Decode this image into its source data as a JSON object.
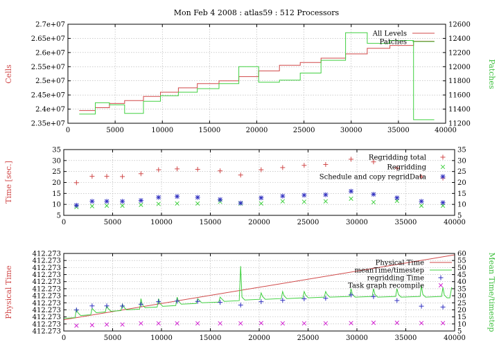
{
  "title": "Mon Feb 4 2008 : atlas59 : 512 Processors",
  "colors": {
    "red": "#d04848",
    "green": "#40d040",
    "blue": "#3030c0",
    "magenta": "#d020d0"
  },
  "chart_data": [
    {
      "type": "line",
      "ylabel": "Cells",
      "y2label": "Patches",
      "xlim": [
        0,
        40000
      ],
      "ylim": [
        23500000,
        27000000
      ],
      "y2lim": [
        11200,
        12600
      ],
      "xticks": [
        "0",
        "5000",
        "10000",
        "15000",
        "20000",
        "25000",
        "30000",
        "35000",
        "40000"
      ],
      "yticks": [
        "2.35e+07",
        "2.4e+07",
        "2.45e+07",
        "2.5e+07",
        "2.55e+07",
        "2.6e+07",
        "2.65e+07",
        "2.7e+07"
      ],
      "y2ticks": [
        "11200",
        "11400",
        "11600",
        "11800",
        "12000",
        "12200",
        "12400",
        "12600"
      ],
      "grid": true,
      "legend_position": "top-right",
      "series": [
        {
          "name": "All Levels",
          "axis": "y",
          "step": true,
          "x": [
            1200,
            2900,
            4400,
            6000,
            8000,
            9800,
            11700,
            13700,
            16000,
            18100,
            20200,
            22400,
            24600,
            26800,
            29400,
            31700,
            34100,
            36600,
            38800
          ],
          "y": [
            23950000,
            24050000,
            24200000,
            24300000,
            24450000,
            24600000,
            24750000,
            24900000,
            25000000,
            25150000,
            25350000,
            25550000,
            25650000,
            25800000,
            25950000,
            26150000,
            26250000,
            26400000,
            26400000
          ]
        },
        {
          "name": "Patches",
          "axis": "y2",
          "step": true,
          "x": [
            1200,
            2900,
            4400,
            6000,
            8000,
            9800,
            11700,
            13700,
            16000,
            18100,
            20200,
            22400,
            24600,
            26800,
            29400,
            31700,
            34100,
            36600,
            38800
          ],
          "y": [
            11330,
            11490,
            11460,
            11340,
            11510,
            11590,
            11640,
            11690,
            11760,
            12000,
            11780,
            11810,
            11910,
            12090,
            12480,
            12330,
            12370,
            11250,
            11250
          ]
        }
      ]
    },
    {
      "type": "scatter",
      "ylabel": "Time [sec.]",
      "xlim": [
        0,
        40000
      ],
      "ylim": [
        5,
        35
      ],
      "xticks": [
        "0",
        "5000",
        "10000",
        "15000",
        "20000",
        "25000",
        "30000",
        "35000",
        "40000"
      ],
      "yticks": [
        "5",
        "10",
        "15",
        "20",
        "25",
        "30",
        "35"
      ],
      "y2ticks": [
        "5",
        "10",
        "15",
        "20",
        "25",
        "30",
        "35"
      ],
      "grid": true,
      "legend_position": "top-right",
      "x": [
        1300,
        2900,
        4400,
        6000,
        7900,
        9700,
        11600,
        13700,
        16000,
        18100,
        20200,
        22400,
        24600,
        26800,
        29400,
        31700,
        34100,
        36600,
        38800
      ],
      "series": [
        {
          "name": "Regridding total",
          "marker": "plus",
          "y": [
            19.9,
            22.8,
            22.8,
            22.7,
            24.0,
            25.8,
            26.2,
            26.0,
            25.3,
            23.4,
            25.8,
            26.8,
            27.8,
            28.2,
            30.6,
            29.4,
            26.6,
            22.6,
            22.0
          ]
        },
        {
          "name": "Regridding",
          "marker": "x",
          "y": [
            8.8,
            9.2,
            9.4,
            9.4,
            9.8,
            10.2,
            10.4,
            10.4,
            11.2,
            10.4,
            10.4,
            11.4,
            11.2,
            11.4,
            12.6,
            11.0,
            11.6,
            9.4,
            9.4
          ]
        },
        {
          "name": "Schedule and copy regridData",
          "marker": "star",
          "y": [
            9.6,
            11.4,
            11.4,
            11.4,
            11.8,
            13.2,
            13.6,
            13.2,
            12.2,
            10.6,
            13.0,
            13.8,
            14.2,
            14.4,
            16.0,
            14.6,
            13.0,
            11.4,
            10.8
          ]
        }
      ]
    },
    {
      "type": "line",
      "ylabel": "Physical Time",
      "y2label": "Mean Time/timestep",
      "xlim": [
        0,
        40000
      ],
      "y2lim": [
        5,
        60
      ],
      "xticks": [
        "0",
        "5000",
        "10000",
        "15000",
        "20000",
        "25000",
        "30000",
        "35000",
        "40000"
      ],
      "yticks": [
        "412.273",
        "412.273",
        "412.273",
        "412.273",
        "412.273",
        "412.273",
        "412.273",
        "412.273",
        "412.273",
        "412.273",
        "412.273",
        "412.273"
      ],
      "y2ticks": [
        "5",
        "10",
        "15",
        "20",
        "25",
        "30",
        "35",
        "40",
        "45",
        "50",
        "55",
        "60"
      ],
      "grid": true,
      "legend_position": "top-right",
      "series": [
        {
          "name": "Physical Time",
          "axis": "y2",
          "x": [
            0,
            40000
          ],
          "y": [
            13,
            59
          ]
        },
        {
          "name": "meanTime/timestep",
          "axis": "y2",
          "spikes": true,
          "base": [
            16,
            18,
            19,
            20,
            21.5,
            22.5,
            24,
            25,
            26,
            27,
            27.5,
            28,
            28.5,
            29,
            29,
            29,
            29,
            29,
            28.5
          ],
          "peaks": [
            21,
            21,
            23,
            24,
            28,
            28,
            29,
            28,
            29,
            51,
            32,
            33,
            33,
            33,
            35,
            35,
            35,
            37,
            36
          ],
          "x": [
            1300,
            2900,
            4400,
            6000,
            7900,
            9700,
            11600,
            13700,
            16000,
            18100,
            20200,
            22400,
            24600,
            26800,
            29400,
            31700,
            34100,
            36600,
            38800
          ]
        },
        {
          "name": "regridding Time",
          "axis": "y2",
          "marker": "plus",
          "x": [
            1300,
            2900,
            4400,
            6000,
            7900,
            9700,
            11600,
            13700,
            16000,
            18100,
            20200,
            22400,
            24600,
            26800,
            29400,
            31700,
            34100,
            36600,
            38800
          ],
          "y": [
            19.9,
            22.8,
            22.8,
            22.7,
            24.0,
            25.8,
            26.2,
            26.0,
            25.3,
            23.4,
            25.8,
            26.8,
            27.8,
            28.2,
            30.6,
            29.4,
            26.6,
            22.6,
            22.0
          ]
        },
        {
          "name": "Task graph recompile",
          "axis": "y2",
          "marker": "x",
          "x": [
            1300,
            2900,
            4400,
            6000,
            7900,
            9700,
            11600,
            13700,
            16000,
            18100,
            20200,
            22400,
            24600,
            26800,
            29400,
            31700,
            34100,
            36600,
            38800
          ],
          "y": [
            8.8,
            9.2,
            9.6,
            9.6,
            10.4,
            10.4,
            10.4,
            10.4,
            10.4,
            10.4,
            10.6,
            10.4,
            10.4,
            10.4,
            10.6,
            10.8,
            10.8,
            10.6,
            10.6
          ]
        }
      ]
    }
  ]
}
